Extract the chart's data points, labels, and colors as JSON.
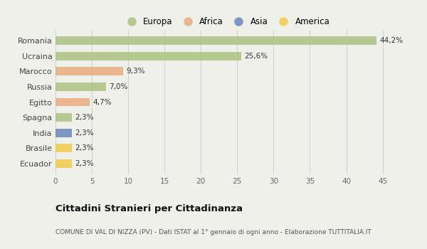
{
  "categories": [
    "Romania",
    "Ucraina",
    "Marocco",
    "Russia",
    "Egitto",
    "Spagna",
    "India",
    "Brasile",
    "Ecuador"
  ],
  "values": [
    44.2,
    25.6,
    9.3,
    7.0,
    4.7,
    2.3,
    2.3,
    2.3,
    2.3
  ],
  "labels": [
    "44,2%",
    "25,6%",
    "9,3%",
    "7,0%",
    "4,7%",
    "2,3%",
    "2,3%",
    "2,3%",
    "2,3%"
  ],
  "colors": [
    "#a8c07a",
    "#a8c07a",
    "#e8a878",
    "#a8c07a",
    "#e8a878",
    "#a8c07a",
    "#6080b8",
    "#f0c840",
    "#f0c840"
  ],
  "legend": [
    {
      "label": "Europa",
      "color": "#a8c07a"
    },
    {
      "label": "Africa",
      "color": "#e8a878"
    },
    {
      "label": "Asia",
      "color": "#6080b8"
    },
    {
      "label": "America",
      "color": "#f0c840"
    }
  ],
  "title": "Cittadini Stranieri per Cittadinanza",
  "subtitle": "COMUNE DI VAL DI NIZZA (PV) - Dati ISTAT al 1° gennaio di ogni anno - Elaborazione TUTTITALIA.IT",
  "xlim": [
    0,
    47
  ],
  "xticks": [
    0,
    5,
    10,
    15,
    20,
    25,
    30,
    35,
    40,
    45
  ],
  "background_color": "#f0f0eb",
  "bar_alpha": 0.8,
  "bar_height": 0.55
}
